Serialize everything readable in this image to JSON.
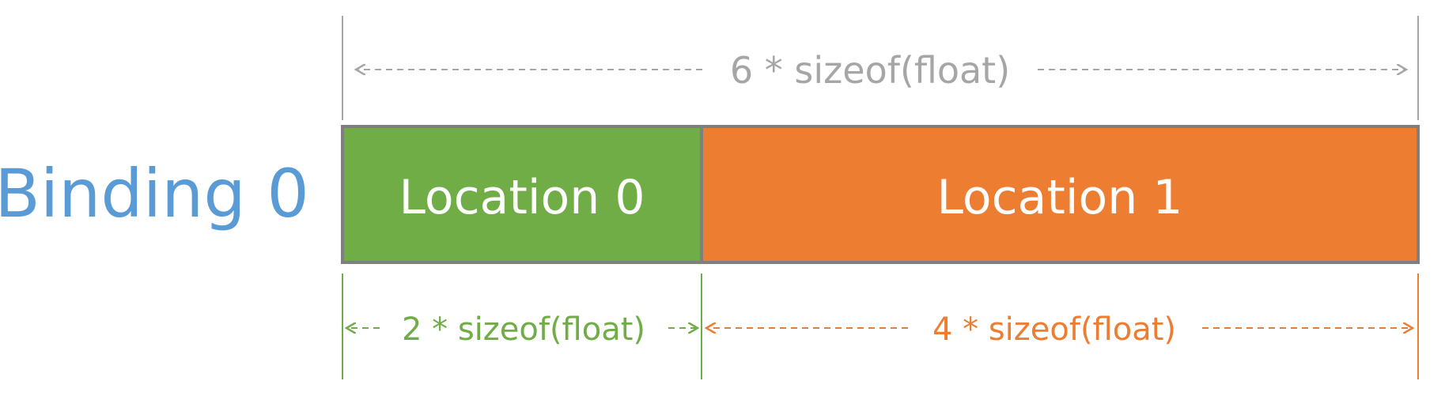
{
  "binding": {
    "label": "Binding 0",
    "color": "#5b9bd5"
  },
  "total_size": {
    "label": "6 * sizeof(float)",
    "color": "#a6a6a6"
  },
  "locations": [
    {
      "label": "Location 0",
      "size_label": "2 * sizeof(float)",
      "units": 2,
      "color": "#70ad47"
    },
    {
      "label": "Location 1",
      "size_label": "4 * sizeof(float)",
      "units": 4,
      "color": "#ed7d31"
    }
  ],
  "border_color": "#7f7f7f"
}
